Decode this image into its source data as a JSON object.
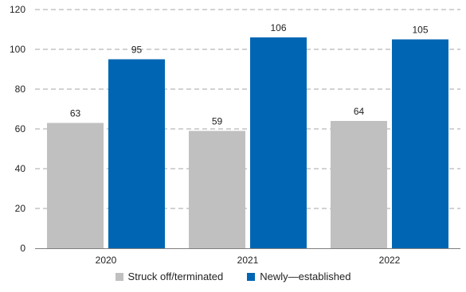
{
  "chart_data": {
    "type": "bar",
    "categories": [
      "2020",
      "2021",
      "2022"
    ],
    "series": [
      {
        "name": "Struck off/terminated",
        "values": [
          63,
          59,
          64
        ],
        "color": "#c0c0c0"
      },
      {
        "name": "Newly—established",
        "values": [
          95,
          106,
          105
        ],
        "color": "#0066b3"
      }
    ],
    "ylim": [
      0,
      120
    ],
    "yticks": [
      0,
      20,
      40,
      60,
      80,
      100,
      120
    ],
    "grid": true,
    "legend_position": "bottom"
  }
}
